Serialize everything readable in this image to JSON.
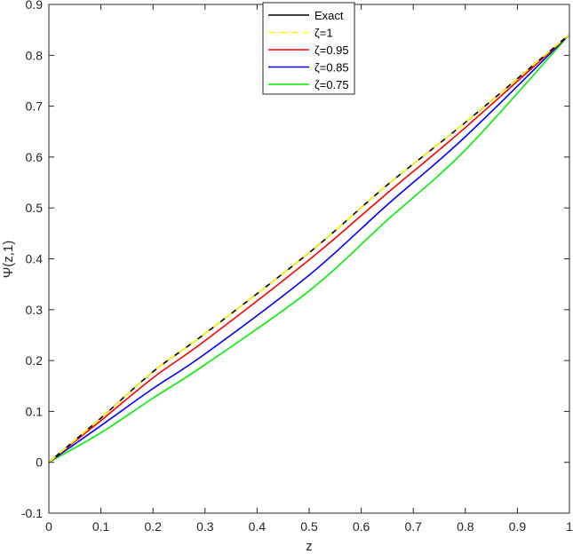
{
  "chart_data": {
    "type": "line",
    "title": "",
    "xlabel": "z",
    "ylabel": "Ψ(z,1)",
    "xlim": [
      0,
      1
    ],
    "ylim": [
      -0.1,
      0.9
    ],
    "grid": false,
    "legend_position": "top-center",
    "xticks": [
      0,
      0.1,
      0.2,
      0.3,
      0.4,
      0.5,
      0.6,
      0.7,
      0.8,
      0.9,
      1
    ],
    "xtick_labels": [
      "0",
      "0.1",
      "0.2",
      "0.3",
      "0.4",
      "0.5",
      "0.6",
      "0.7",
      "0.8",
      "0.9",
      "1"
    ],
    "yticks": [
      -0.1,
      0,
      0.1,
      0.2,
      0.3,
      0.4,
      0.5,
      0.6,
      0.7,
      0.8,
      0.9
    ],
    "ytick_labels": [
      "-0.1",
      "0",
      "0.1",
      "0.2",
      "0.3",
      "0.4",
      "0.5",
      "0.6",
      "0.7",
      "0.8",
      "0.9"
    ],
    "x": [
      0,
      0.1,
      0.2,
      0.3,
      0.5,
      0.65,
      0.8,
      1.0
    ],
    "series": [
      {
        "name": "Exact",
        "color": "#000000",
        "style": "solid",
        "values": [
          0,
          0.087,
          0.178,
          0.253,
          0.412,
          0.545,
          0.668,
          0.841
        ]
      },
      {
        "name": "ζ=1",
        "color": "#ffff00",
        "style": "dashed",
        "values": [
          0,
          0.087,
          0.178,
          0.253,
          0.412,
          0.545,
          0.668,
          0.841
        ]
      },
      {
        "name": "ζ=0.95",
        "color": "#ff0000",
        "style": "solid",
        "values": [
          0,
          0.082,
          0.166,
          0.239,
          0.398,
          0.529,
          0.658,
          0.841
        ]
      },
      {
        "name": "ζ=0.85",
        "color": "#0000ff",
        "style": "solid",
        "values": [
          0,
          0.072,
          0.145,
          0.213,
          0.368,
          0.506,
          0.64,
          0.841
        ]
      },
      {
        "name": "ζ=0.75",
        "color": "#00ee00",
        "style": "solid",
        "values": [
          0,
          0.058,
          0.126,
          0.192,
          0.337,
          0.476,
          0.614,
          0.841
        ]
      }
    ]
  }
}
